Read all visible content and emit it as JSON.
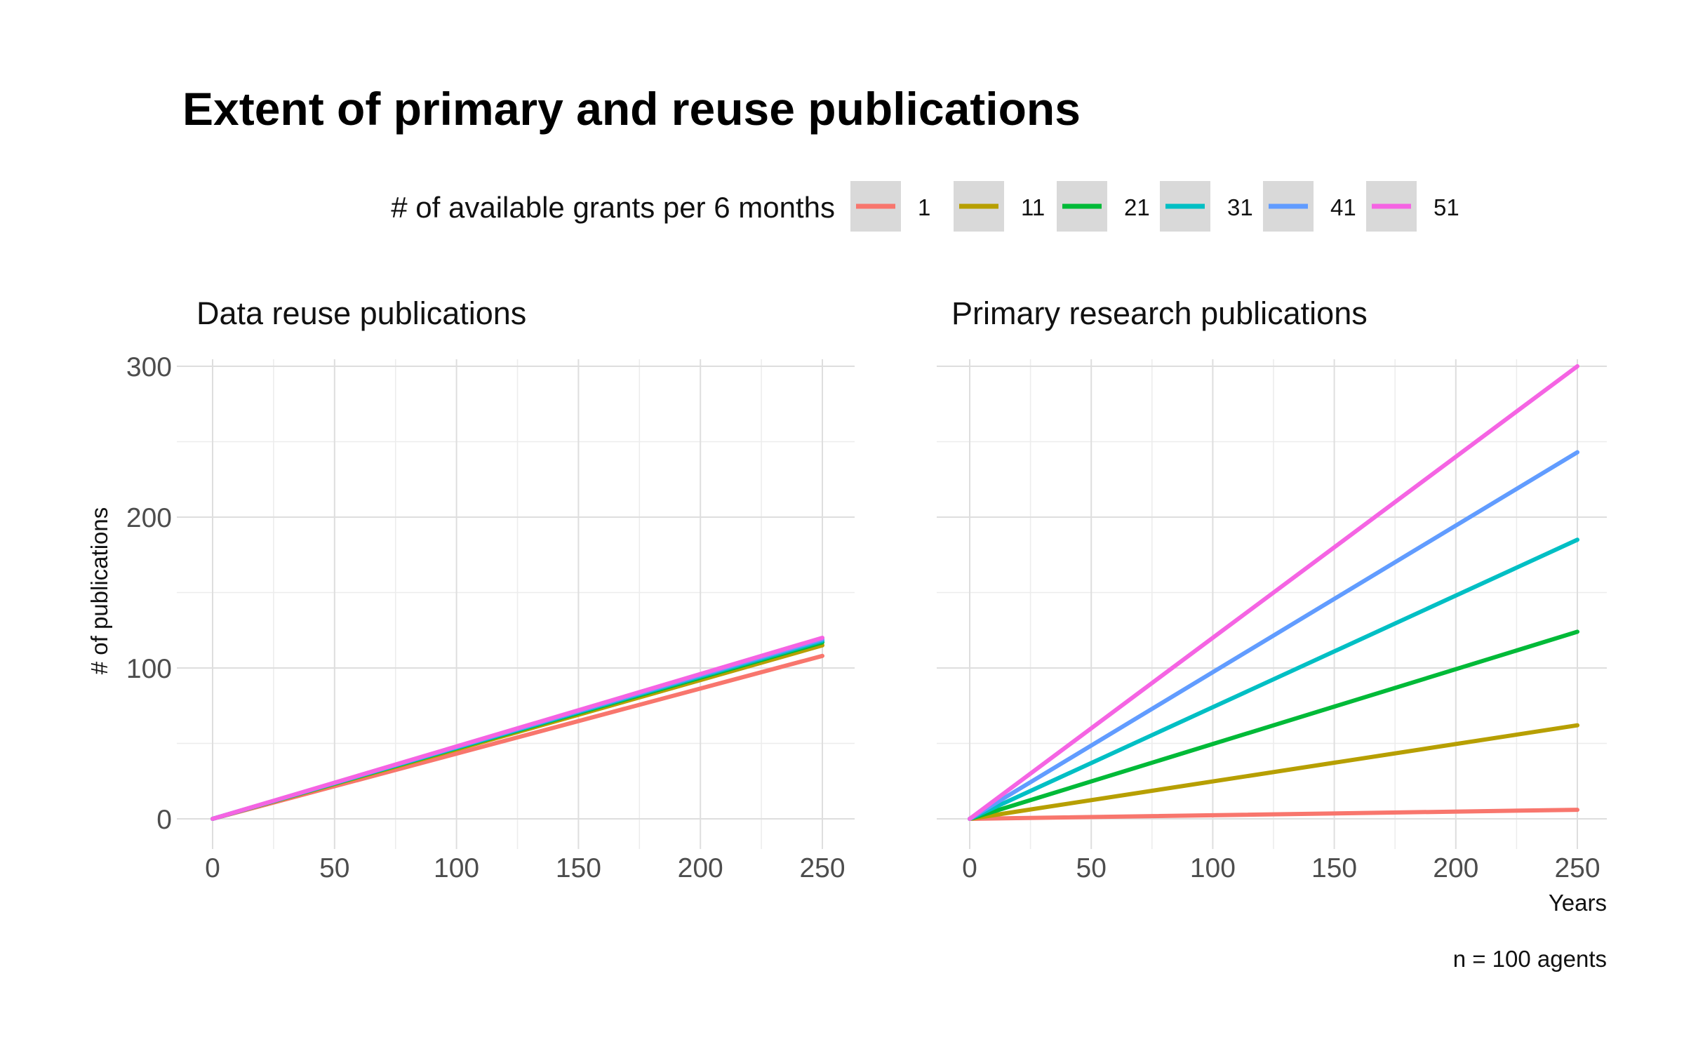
{
  "title": "Extent of primary and reuse publications",
  "legend": {
    "title": "# of available grants per 6 months"
  },
  "caption": "n = 100 agents",
  "colors": [
    "#F8766D",
    "#B79F00",
    "#00BA38",
    "#00BFC4",
    "#619CFF",
    "#F564E3"
  ],
  "chart_data": [
    {
      "type": "line",
      "title": "Data reuse publications",
      "xlabel": "",
      "ylabel": "# of publications",
      "xlim": [
        0,
        250
      ],
      "ylim": [
        0,
        300
      ],
      "xticks": [
        "0",
        "50",
        "100",
        "150",
        "200",
        "250"
      ],
      "yticks": [
        "0",
        "100",
        "200",
        "300"
      ],
      "grid": true,
      "legend_position": "top",
      "series": [
        {
          "name": "1",
          "x": [
            0,
            250
          ],
          "y": [
            0,
            108
          ]
        },
        {
          "name": "11",
          "x": [
            0,
            250
          ],
          "y": [
            0,
            115
          ]
        },
        {
          "name": "21",
          "x": [
            0,
            250
          ],
          "y": [
            0,
            117
          ]
        },
        {
          "name": "31",
          "x": [
            0,
            250
          ],
          "y": [
            0,
            118
          ]
        },
        {
          "name": "41",
          "x": [
            0,
            250
          ],
          "y": [
            0,
            119
          ]
        },
        {
          "name": "51",
          "x": [
            0,
            250
          ],
          "y": [
            0,
            120
          ]
        }
      ]
    },
    {
      "type": "line",
      "title": "Primary research publications",
      "xlabel": "Years",
      "ylabel": "",
      "xlim": [
        0,
        250
      ],
      "ylim": [
        0,
        300
      ],
      "xticks": [
        "0",
        "50",
        "100",
        "150",
        "200",
        "250"
      ],
      "yticks": [
        "0",
        "100",
        "200",
        "300"
      ],
      "grid": true,
      "legend_position": "top",
      "series": [
        {
          "name": "1",
          "x": [
            0,
            250
          ],
          "y": [
            0,
            6
          ]
        },
        {
          "name": "11",
          "x": [
            0,
            250
          ],
          "y": [
            0,
            62
          ]
        },
        {
          "name": "21",
          "x": [
            0,
            250
          ],
          "y": [
            0,
            124
          ]
        },
        {
          "name": "31",
          "x": [
            0,
            250
          ],
          "y": [
            0,
            185
          ]
        },
        {
          "name": "41",
          "x": [
            0,
            250
          ],
          "y": [
            0,
            243
          ]
        },
        {
          "name": "51",
          "x": [
            0,
            250
          ],
          "y": [
            0,
            300
          ]
        }
      ]
    }
  ]
}
